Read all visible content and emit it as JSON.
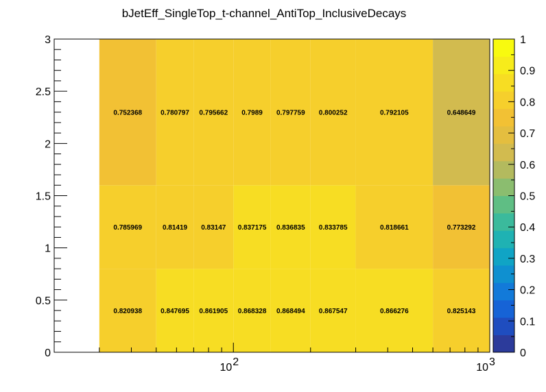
{
  "chart_data": {
    "type": "heatmap",
    "title": "bJetEff_SingleTop_t-channel_AntiTop_InclusiveDecays",
    "xlabel": "",
    "ylabel": "",
    "x_scale": "log",
    "xlim": [
      20,
      1000
    ],
    "ylim": [
      0,
      3
    ],
    "x_edges": [
      30,
      50,
      70,
      100,
      140,
      200,
      300,
      600,
      1000
    ],
    "y_edges": [
      0,
      0.8,
      1.6,
      3.0
    ],
    "values": [
      [
        0.820938,
        0.847695,
        0.861905,
        0.868328,
        0.868494,
        0.867547,
        0.866276,
        0.825143
      ],
      [
        0.785969,
        0.81419,
        0.83147,
        0.837175,
        0.836835,
        0.833785,
        0.818661,
        0.773292
      ],
      [
        0.752368,
        0.780797,
        0.795662,
        0.7989,
        0.797759,
        0.800252,
        0.792105,
        0.648649
      ]
    ],
    "cell_labels": [
      [
        "0.820938",
        "0.847695",
        "0.861905",
        "0.868328",
        "0.868494",
        "0.867547",
        "0.866276",
        "0.825143"
      ],
      [
        "0.785969",
        "0.81419",
        "0.83147",
        "0.837175",
        "0.836835",
        "0.833785",
        "0.818661",
        "0.773292"
      ],
      [
        "0.752368",
        "0.780797",
        "0.795662",
        "0.7989",
        "0.797759",
        "0.800252",
        "0.792105",
        "0.648649"
      ]
    ],
    "x_major_ticks": [
      100,
      1000
    ],
    "x_tick_labels": [
      {
        "base": "10",
        "exp": "2"
      },
      {
        "base": "10",
        "exp": "3"
      }
    ],
    "y_ticks": [
      0,
      0.5,
      1,
      1.5,
      2,
      2.5,
      3
    ],
    "y_tick_labels": [
      "0",
      "0.5",
      "1",
      "1.5",
      "2",
      "2.5",
      "3"
    ],
    "z_range": [
      0,
      1
    ],
    "z_ticks": [
      0,
      0.1,
      0.2,
      0.3,
      0.4,
      0.5,
      0.6,
      0.7,
      0.8,
      0.9,
      1
    ],
    "z_tick_labels": [
      "0",
      "0.1",
      "0.2",
      "0.3",
      "0.4",
      "0.5",
      "0.6",
      "0.7",
      "0.8",
      "0.9",
      "1"
    ],
    "palette": [
      "#2c3b9b",
      "#1f4dbf",
      "#1663d6",
      "#127ad9",
      "#0f90d0",
      "#10a4c5",
      "#1fb2b3",
      "#3bba9c",
      "#5fbe84",
      "#8bbd6f",
      "#b3ba5e",
      "#d2bb4f",
      "#e4be3f",
      "#f2c134",
      "#f6cf2c",
      "#f7dd23",
      "#f7ec1b",
      "#f8fa0f"
    ],
    "grid": false,
    "legend": "right color palette"
  }
}
